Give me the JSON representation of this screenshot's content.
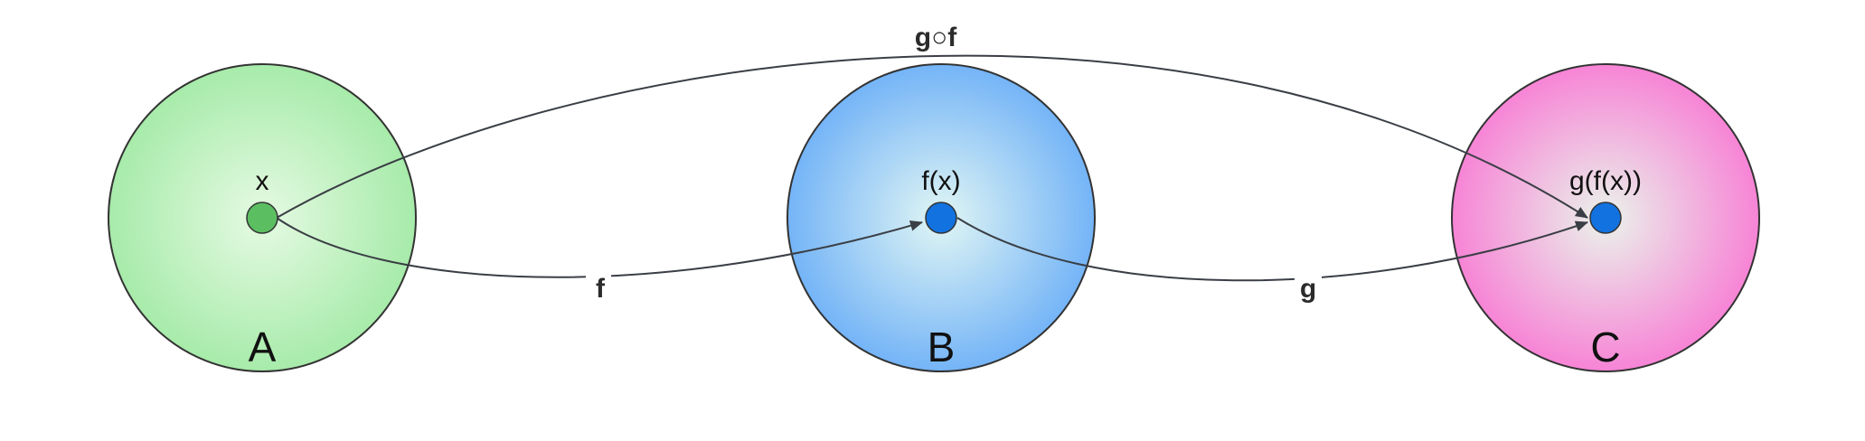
{
  "sets": [
    {
      "id": "A",
      "label": "A",
      "color_center": "#e6fae3",
      "color_edge": "#a7ebaa",
      "element": {
        "label": "x",
        "color": "#5bbf62"
      }
    },
    {
      "id": "B",
      "label": "B",
      "color_center": "#e1f6f4",
      "color_edge": "#74b4f7",
      "element": {
        "label": "f(x)",
        "color": "#1272e0"
      }
    },
    {
      "id": "C",
      "label": "C",
      "color_center": "#eaf3ea",
      "color_edge": "#f784d6",
      "element": {
        "label": "g(f(x))",
        "color": "#1272e0"
      }
    }
  ],
  "arrows": [
    {
      "id": "f",
      "label": "f",
      "from": "A",
      "to": "B"
    },
    {
      "id": "g",
      "label": "g",
      "from": "B",
      "to": "C"
    },
    {
      "id": "gof",
      "label": "g○f",
      "from": "A",
      "to": "C"
    }
  ],
  "colors": {
    "stroke": "#3a3e45",
    "outline": "#333333"
  }
}
